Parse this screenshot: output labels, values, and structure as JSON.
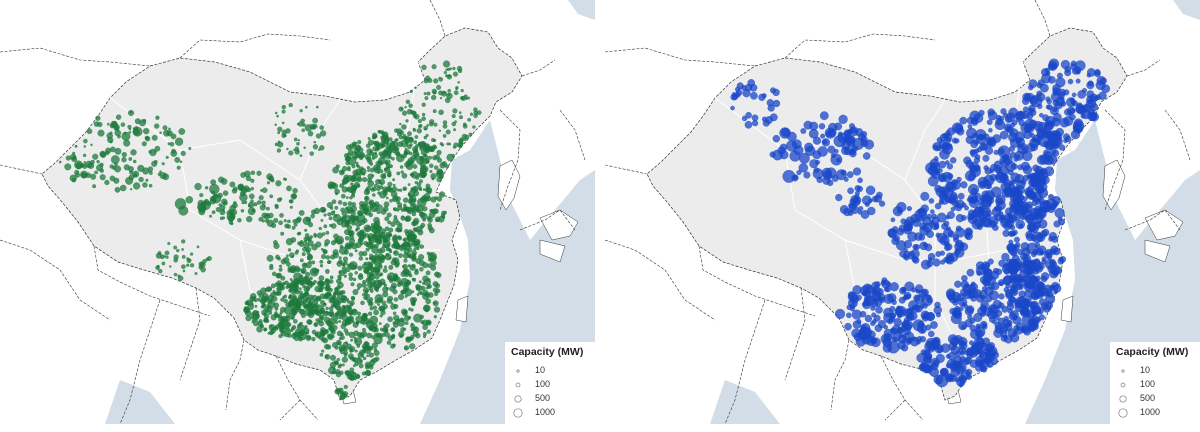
{
  "colors": {
    "sea": "#d2dde8",
    "land_china": "#ececec",
    "land_other": "#ffffff",
    "border": "#333333",
    "internal_border": "#ffffff",
    "left_dots": "#1e7a3c",
    "right_dots": "#1a47c8"
  },
  "panels": [
    {
      "id": "left",
      "dot_color": "#1e7a3c",
      "legend": {
        "title": "Capacity (MW)",
        "items": [
          {
            "label": "10",
            "value": 10
          },
          {
            "label": "100",
            "value": 100
          },
          {
            "label": "500",
            "value": 500
          },
          {
            "label": "1000",
            "value": 1000
          }
        ]
      }
    },
    {
      "id": "right",
      "dot_color": "#1a47c8",
      "legend": {
        "title": "Capacity (MW)",
        "items": [
          {
            "label": "10",
            "value": 10
          },
          {
            "label": "100",
            "value": 100
          },
          {
            "label": "500",
            "value": 500
          },
          {
            "label": "1000",
            "value": 1000
          }
        ]
      }
    }
  ]
}
